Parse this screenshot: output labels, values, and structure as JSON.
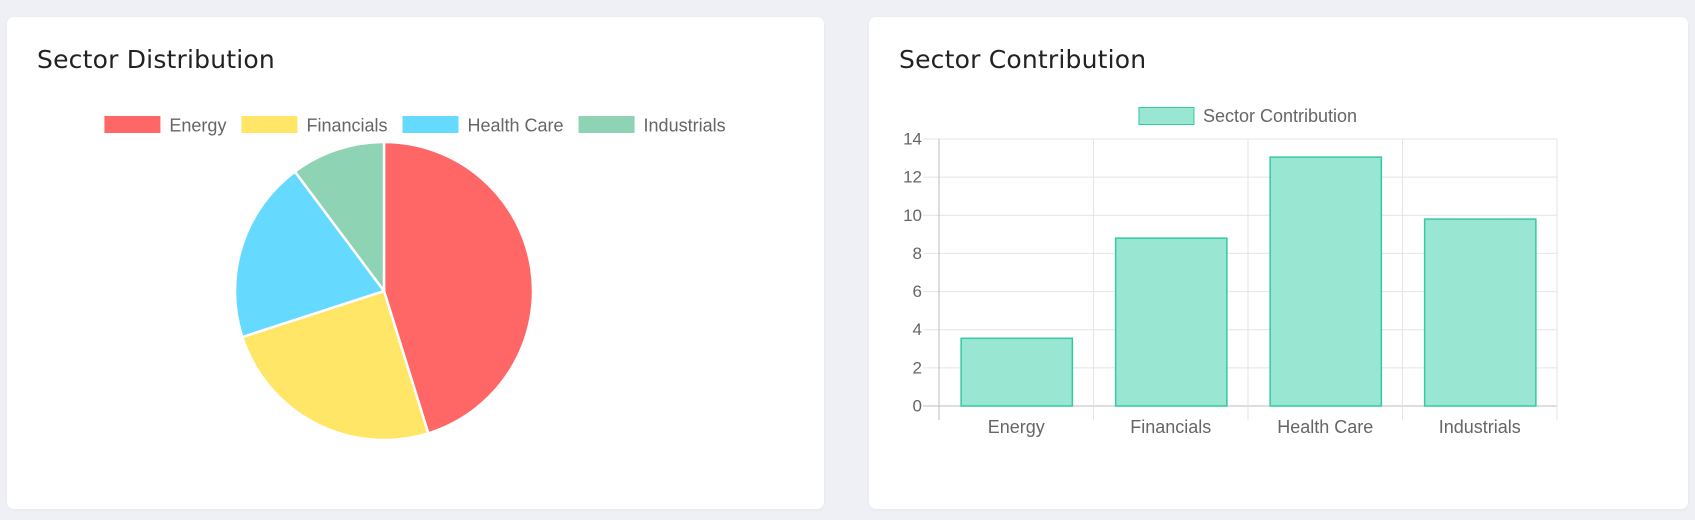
{
  "cards": {
    "distribution": {
      "title": "Sector Distribution"
    },
    "contribution": {
      "title": "Sector Contribution"
    }
  },
  "chart_data": [
    {
      "type": "pie",
      "categories": [
        "Energy",
        "Financials",
        "Health Care",
        "Industrials"
      ],
      "values": [
        45.2,
        24.8,
        19.8,
        10.2
      ],
      "colors": [
        "#ff6666",
        "#ffe666",
        "#66d9ff",
        "#8dd3b4"
      ],
      "legend_position": "top"
    },
    {
      "type": "bar",
      "categories": [
        "Energy",
        "Financials",
        "Health Care",
        "Industrials"
      ],
      "series": [
        {
          "name": "Sector Contribution",
          "values": [
            3.55,
            8.8,
            13.05,
            9.8
          ]
        }
      ],
      "ylim": [
        0,
        14
      ],
      "yticks": [
        0,
        2,
        4,
        6,
        8,
        10,
        12,
        14
      ],
      "grid": true,
      "bar_fill": "#99e6d3",
      "bar_stroke": "#33c9a3",
      "legend_position": "top"
    }
  ]
}
